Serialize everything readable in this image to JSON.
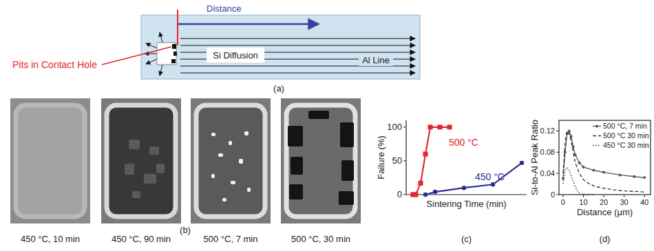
{
  "diagram": {
    "panel_a": {
      "label": "(a)",
      "distance_label": "Distance",
      "pits_label": "Pits in Contact Hole",
      "diffusion_label": "Si Diffusion",
      "line_label": "Al Line"
    },
    "panel_b": {
      "label": "(b)",
      "images": [
        {
          "caption": "450 °C, 10 min"
        },
        {
          "caption": "450 °C, 90 min"
        },
        {
          "caption": "500 °C, 7 min"
        },
        {
          "caption": "500 °C, 30 min"
        }
      ]
    }
  },
  "chart_data": [
    {
      "type": "line",
      "panel_label": "(c)",
      "x_label": "Sintering Time (min)",
      "y_label": "Failure (%)",
      "xlim": [
        0,
        125
      ],
      "ylim": [
        0,
        110
      ],
      "yticks": [
        0,
        50,
        100
      ],
      "tick_labels": "y",
      "grid": false,
      "series": [
        {
          "name": "500 °C",
          "color": "#e3262d",
          "marker": "square",
          "line_style": "solid",
          "x": [
            7,
            10,
            15,
            20,
            25,
            35,
            45
          ],
          "values": [
            0,
            0,
            17,
            60,
            100,
            100,
            100
          ]
        },
        {
          "name": "450 °C",
          "color": "#2b2f8f",
          "marker": "circle",
          "line_style": "solid",
          "x": [
            20,
            30,
            60,
            90,
            120
          ],
          "values": [
            0,
            4,
            10,
            15,
            47
          ]
        }
      ]
    },
    {
      "type": "line",
      "panel_label": "(d)",
      "x_label": "Distance (μm)",
      "y_label": "Si-to-Al Peak Ratio",
      "xlim": [
        -2,
        43
      ],
      "ylim": [
        0,
        0.14
      ],
      "xticks": [
        0,
        10,
        20,
        30,
        40
      ],
      "yticks": [
        0,
        0.04,
        0.08,
        0.12
      ],
      "grid": false,
      "legend": "upper right",
      "series": [
        {
          "name": "500 °C, 7 min",
          "color": "#555555",
          "marker": "circle",
          "line_style": "solid",
          "x": [
            0,
            1,
            2,
            3,
            4,
            5,
            6,
            8,
            10,
            15,
            20,
            28,
            35,
            40
          ],
          "values": [
            0.03,
            0.08,
            0.115,
            0.12,
            0.11,
            0.09,
            0.075,
            0.06,
            0.052,
            0.046,
            0.042,
            0.037,
            0.034,
            0.032
          ]
        },
        {
          "name": "500 °C 30 min",
          "color": "#333333",
          "marker": "none",
          "line_style": "dashed",
          "x": [
            0,
            1,
            2,
            3,
            4,
            5,
            6,
            8,
            10,
            13,
            16,
            20,
            25,
            30,
            35,
            40
          ],
          "values": [
            0.04,
            0.1,
            0.12,
            0.115,
            0.1,
            0.08,
            0.06,
            0.04,
            0.028,
            0.02,
            0.015,
            0.012,
            0.009,
            0.007,
            0.006,
            0.005
          ]
        },
        {
          "name": "450 °C 30 min",
          "color": "#222222",
          "marker": "none",
          "line_style": "dotted",
          "x": [
            0,
            1,
            2,
            3,
            4,
            5,
            6,
            7,
            8,
            10,
            15
          ],
          "values": [
            0.02,
            0.045,
            0.05,
            0.045,
            0.035,
            0.025,
            0.015,
            0.008,
            0.003,
            0,
            0
          ]
        }
      ]
    }
  ]
}
